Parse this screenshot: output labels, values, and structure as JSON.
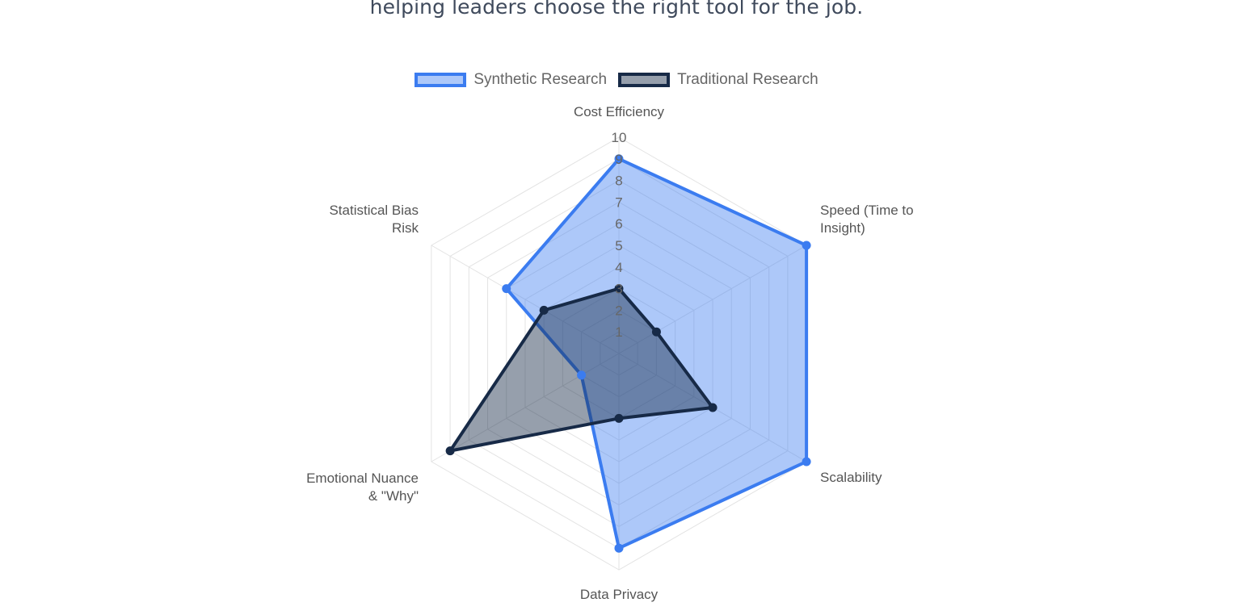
{
  "page": {
    "headline": "helping leaders choose the right tool for the job."
  },
  "chart_data": {
    "type": "radar",
    "axes": [
      "Cost Efficiency",
      "Speed (Time to Insight)",
      "Scalability",
      "Data Privacy",
      "Emotional Nuance & \"Why\"",
      "Statistical Bias Risk"
    ],
    "axis_label_lines": [
      [
        "Cost Efficiency"
      ],
      [
        "Speed (Time to",
        "Insight)"
      ],
      [
        "Scalability"
      ],
      [
        "Data Privacy"
      ],
      [
        "Emotional Nuance",
        "& \"Why\""
      ],
      [
        "Statistical Bias",
        "Risk"
      ]
    ],
    "scale": {
      "min": 0,
      "max": 10,
      "ticks": [
        "1",
        "2",
        "3",
        "4",
        "5",
        "6",
        "7",
        "8",
        "9",
        "10"
      ]
    },
    "series": [
      {
        "name": "Synthetic Research",
        "values": [
          9,
          10,
          10,
          9,
          2,
          6
        ],
        "color": "#3b7cf0",
        "fill": "rgba(59,124,240,0.42)"
      },
      {
        "name": "Traditional Research",
        "values": [
          3,
          2,
          5,
          3,
          9,
          4
        ],
        "color": "#172a47",
        "fill": "rgba(23,42,71,0.45)"
      }
    ],
    "legend_position": "top-center"
  }
}
